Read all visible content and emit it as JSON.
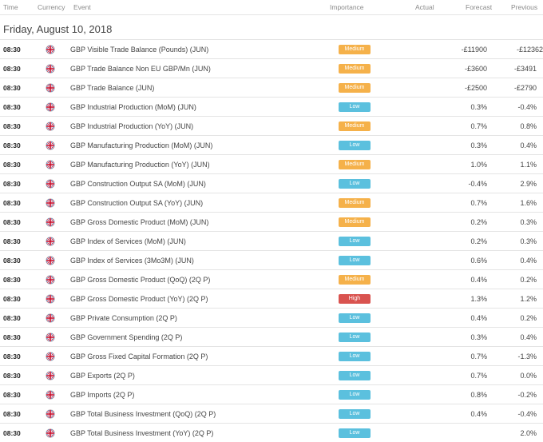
{
  "header": {
    "time": "Time",
    "currency": "Currency",
    "event": "Event",
    "importance": "Importance",
    "actual": "Actual",
    "forecast": "Forecast",
    "previous": "Previous"
  },
  "date": "Friday, August 10, 2018",
  "colors": {
    "medium": "#f5b14a",
    "low": "#5bc0de",
    "high": "#d9534f"
  },
  "rows": [
    {
      "time": "08:30",
      "flag": "uk-flag-icon",
      "event": "GBP Visible Trade Balance (Pounds) (JUN)",
      "importance": "Medium",
      "actual": "",
      "forecast": "-£11900",
      "previous": "-£12362"
    },
    {
      "time": "08:30",
      "flag": "uk-flag-icon",
      "event": "GBP Trade Balance Non EU GBP/Mn (JUN)",
      "importance": "Medium",
      "actual": "",
      "forecast": "-£3600",
      "previous": "-£3491"
    },
    {
      "time": "08:30",
      "flag": "uk-flag-icon",
      "event": "GBP Trade Balance (JUN)",
      "importance": "Medium",
      "actual": "",
      "forecast": "-£2500",
      "previous": "-£2790"
    },
    {
      "time": "08:30",
      "flag": "uk-flag-icon",
      "event": "GBP Industrial Production (MoM) (JUN)",
      "importance": "Low",
      "actual": "",
      "forecast": "0.3%",
      "previous": "-0.4%"
    },
    {
      "time": "08:30",
      "flag": "uk-flag-icon",
      "event": "GBP Industrial Production (YoY) (JUN)",
      "importance": "Medium",
      "actual": "",
      "forecast": "0.7%",
      "previous": "0.8%"
    },
    {
      "time": "08:30",
      "flag": "uk-flag-icon",
      "event": "GBP Manufacturing Production (MoM) (JUN)",
      "importance": "Low",
      "actual": "",
      "forecast": "0.3%",
      "previous": "0.4%"
    },
    {
      "time": "08:30",
      "flag": "uk-flag-icon",
      "event": "GBP Manufacturing Production (YoY) (JUN)",
      "importance": "Medium",
      "actual": "",
      "forecast": "1.0%",
      "previous": "1.1%"
    },
    {
      "time": "08:30",
      "flag": "uk-flag-icon",
      "event": "GBP Construction Output SA (MoM) (JUN)",
      "importance": "Low",
      "actual": "",
      "forecast": "-0.4%",
      "previous": "2.9%"
    },
    {
      "time": "08:30",
      "flag": "uk-flag-icon",
      "event": "GBP Construction Output SA (YoY) (JUN)",
      "importance": "Medium",
      "actual": "",
      "forecast": "0.7%",
      "previous": "1.6%"
    },
    {
      "time": "08:30",
      "flag": "uk-flag-icon",
      "event": "GBP Gross Domestic Product (MoM) (JUN)",
      "importance": "Medium",
      "actual": "",
      "forecast": "0.2%",
      "previous": "0.3%"
    },
    {
      "time": "08:30",
      "flag": "uk-flag-icon",
      "event": "GBP Index of Services (MoM) (JUN)",
      "importance": "Low",
      "actual": "",
      "forecast": "0.2%",
      "previous": "0.3%"
    },
    {
      "time": "08:30",
      "flag": "uk-flag-icon",
      "event": "GBP Index of Services (3Mo3M) (JUN)",
      "importance": "Low",
      "actual": "",
      "forecast": "0.6%",
      "previous": "0.4%"
    },
    {
      "time": "08:30",
      "flag": "uk-flag-icon",
      "event": "GBP Gross Domestic Product (QoQ) (2Q P)",
      "importance": "Medium",
      "actual": "",
      "forecast": "0.4%",
      "previous": "0.2%"
    },
    {
      "time": "08:30",
      "flag": "uk-flag-icon",
      "event": "GBP Gross Domestic Product (YoY) (2Q P)",
      "importance": "High",
      "actual": "",
      "forecast": "1.3%",
      "previous": "1.2%"
    },
    {
      "time": "08:30",
      "flag": "uk-flag-icon",
      "event": "GBP Private Consumption (2Q P)",
      "importance": "Low",
      "actual": "",
      "forecast": "0.4%",
      "previous": "0.2%"
    },
    {
      "time": "08:30",
      "flag": "uk-flag-icon",
      "event": "GBP Government Spending (2Q P)",
      "importance": "Low",
      "actual": "",
      "forecast": "0.3%",
      "previous": "0.4%"
    },
    {
      "time": "08:30",
      "flag": "uk-flag-icon",
      "event": "GBP Gross Fixed Capital Formation (2Q P)",
      "importance": "Low",
      "actual": "",
      "forecast": "0.7%",
      "previous": "-1.3%"
    },
    {
      "time": "08:30",
      "flag": "uk-flag-icon",
      "event": "GBP Exports (2Q P)",
      "importance": "Low",
      "actual": "",
      "forecast": "0.7%",
      "previous": "0.0%"
    },
    {
      "time": "08:30",
      "flag": "uk-flag-icon",
      "event": "GBP Imports (2Q P)",
      "importance": "Low",
      "actual": "",
      "forecast": "0.8%",
      "previous": "-0.2%"
    },
    {
      "time": "08:30",
      "flag": "uk-flag-icon",
      "event": "GBP Total Business Investment (QoQ) (2Q P)",
      "importance": "Low",
      "actual": "",
      "forecast": "0.4%",
      "previous": "-0.4%"
    },
    {
      "time": "08:30",
      "flag": "uk-flag-icon",
      "event": "GBP Total Business Investment (YoY) (2Q P)",
      "importance": "Low",
      "actual": "",
      "forecast": "",
      "previous": "2.0%"
    }
  ]
}
